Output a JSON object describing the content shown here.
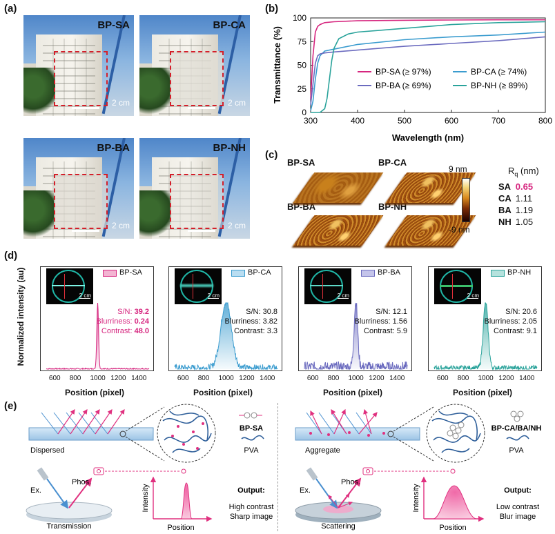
{
  "panel_labels": {
    "a": "(a)",
    "b": "(b)",
    "c": "(c)",
    "d": "(d)",
    "e": "(e)"
  },
  "panel_a": {
    "photos": [
      {
        "title": "BP-SA",
        "scale": "2 cm"
      },
      {
        "title": "BP-CA",
        "scale": "2 cm"
      },
      {
        "title": "BP-BA",
        "scale": "2 cm"
      },
      {
        "title": "BP-NH",
        "scale": "2 cm"
      }
    ]
  },
  "panel_c": {
    "afm_labels": [
      "BP-SA",
      "BP-CA",
      "BP-BA",
      "BP-NH"
    ],
    "colorbar_max": "9 nm",
    "colorbar_min": "-9 nm",
    "rq_header": "R",
    "rq_sub": "q",
    "rq_unit": " (nm)",
    "rq_rows": [
      {
        "name": "SA",
        "value": "0.65"
      },
      {
        "name": "CA",
        "value": "1.11"
      },
      {
        "name": "BA",
        "value": "1.19"
      },
      {
        "name": "NH",
        "value": "1.05"
      }
    ]
  },
  "panel_d": {
    "ylabel": "Normalized intensity (au)",
    "xlabel": "Position (pixel)",
    "xticks": [
      "600",
      "800",
      "1000",
      "1200",
      "1400"
    ],
    "scale": "2 cm",
    "samples": [
      {
        "name": "BP-SA",
        "sn_label": "S/N: ",
        "sn": "39.2",
        "bl_label": "Blurriness: ",
        "bl": "0.24",
        "ct_label": "Contrast: ",
        "ct": "48.0"
      },
      {
        "name": "BP-CA",
        "sn_label": "S/N: ",
        "sn": "30.8",
        "bl_label": "Blurriness: ",
        "bl": "3.82",
        "ct_label": "Contrast: ",
        "ct": "3.3"
      },
      {
        "name": "BP-BA",
        "sn_label": "S/N: ",
        "sn": "12.1",
        "bl_label": "Blurriness: ",
        "bl": "1.56",
        "ct_label": "Contrast: ",
        "ct": "5.9"
      },
      {
        "name": "BP-NH",
        "sn_label": "S/N: ",
        "sn": "20.6",
        "bl_label": "Blurriness: ",
        "bl": "2.05",
        "ct_label": "Contrast: ",
        "ct": "9.1"
      }
    ]
  },
  "panel_e": {
    "left": {
      "state": "Dispersed",
      "mol": "BP-SA",
      "matrix": "PVA",
      "ex": "Ex.",
      "phos": "Phos.",
      "mode": "Transmission",
      "ylabel": "Intensity",
      "xlabel": "Position",
      "output": "Output:",
      "out1": "High contrast",
      "out2": "Sharp image"
    },
    "right": {
      "state": "Aggregate",
      "mol": "BP-CA/BA/NH",
      "matrix": "PVA",
      "ex": "Ex.",
      "phos": "Phos.",
      "mode": "Scattering",
      "ylabel": "Intensity",
      "xlabel": "Position",
      "output": "Output:",
      "out1": "Low contrast",
      "out2": "Blur image"
    }
  },
  "colors": {
    "SA": "#d6267f",
    "CA": "#3b9ccf",
    "BA": "#6b6bbf",
    "NH": "#2aa39b"
  },
  "chart_data": [
    {
      "type": "line",
      "title": "",
      "xlabel": "Wavelength (nm)",
      "ylabel": "Transmittance (%)",
      "xlim": [
        300,
        800
      ],
      "ylim": [
        0,
        100
      ],
      "xticks": [
        300,
        400,
        500,
        600,
        700,
        800
      ],
      "yticks": [
        0,
        25,
        50,
        75,
        100
      ],
      "series": [
        {
          "name": "BP-SA (≥ 97%)",
          "color": "#d6267f",
          "x": [
            300,
            305,
            310,
            315,
            320,
            330,
            350,
            400,
            500,
            600,
            700,
            800
          ],
          "y": [
            14,
            60,
            85,
            91,
            93,
            95,
            96,
            97,
            97.5,
            97.8,
            98,
            98
          ]
        },
        {
          "name": "BP-CA (≥ 74%)",
          "color": "#3b9ccf",
          "x": [
            300,
            305,
            310,
            315,
            320,
            330,
            350,
            400,
            500,
            600,
            700,
            800
          ],
          "y": [
            2,
            12,
            35,
            52,
            60,
            65,
            67,
            72,
            77,
            80,
            82,
            85
          ]
        },
        {
          "name": "BP-BA (≥ 69%)",
          "color": "#6b6bbf",
          "x": [
            300,
            305,
            310,
            315,
            320,
            330,
            350,
            400,
            500,
            600,
            700,
            800
          ],
          "y": [
            8,
            30,
            52,
            60,
            62,
            63,
            64,
            66,
            70,
            73,
            76,
            80
          ]
        },
        {
          "name": "BP-NH (≥ 89%)",
          "color": "#2aa39b",
          "x": [
            300,
            320,
            330,
            335,
            340,
            345,
            350,
            360,
            380,
            400,
            450,
            500,
            600,
            700,
            800
          ],
          "y": [
            0,
            0,
            4,
            15,
            35,
            55,
            68,
            78,
            83,
            85,
            87,
            89,
            93,
            95,
            96
          ]
        }
      ]
    },
    {
      "type": "line",
      "title": "BP-SA",
      "xlabel": "Position (pixel)",
      "ylabel": "Normalized intensity (au)",
      "xlim": [
        500,
        1500
      ],
      "series": [
        {
          "name": "BP-SA",
          "color": "#d6267f",
          "center": 1000,
          "fwhm": 20,
          "noise": 0.01
        }
      ]
    },
    {
      "type": "line",
      "title": "BP-CA",
      "xlabel": "Position (pixel)",
      "ylabel": "Normalized intensity (au)",
      "xlim": [
        500,
        1500
      ],
      "series": [
        {
          "name": "BP-CA",
          "color": "#3b9ccf",
          "center": 1000,
          "fwhm": 120,
          "noise": 0.05
        }
      ]
    },
    {
      "type": "line",
      "title": "BP-BA",
      "xlabel": "Position (pixel)",
      "ylabel": "Normalized intensity (au)",
      "xlim": [
        500,
        1500
      ],
      "series": [
        {
          "name": "BP-BA",
          "color": "#6b6bbf",
          "center": 1000,
          "fwhm": 40,
          "noise": 0.08
        }
      ]
    },
    {
      "type": "line",
      "title": "BP-NH",
      "xlabel": "Position (pixel)",
      "ylabel": "Normalized intensity (au)",
      "xlim": [
        500,
        1500
      ],
      "series": [
        {
          "name": "BP-NH",
          "color": "#2aa39b",
          "center": 1000,
          "fwhm": 55,
          "noise": 0.04
        }
      ]
    }
  ]
}
